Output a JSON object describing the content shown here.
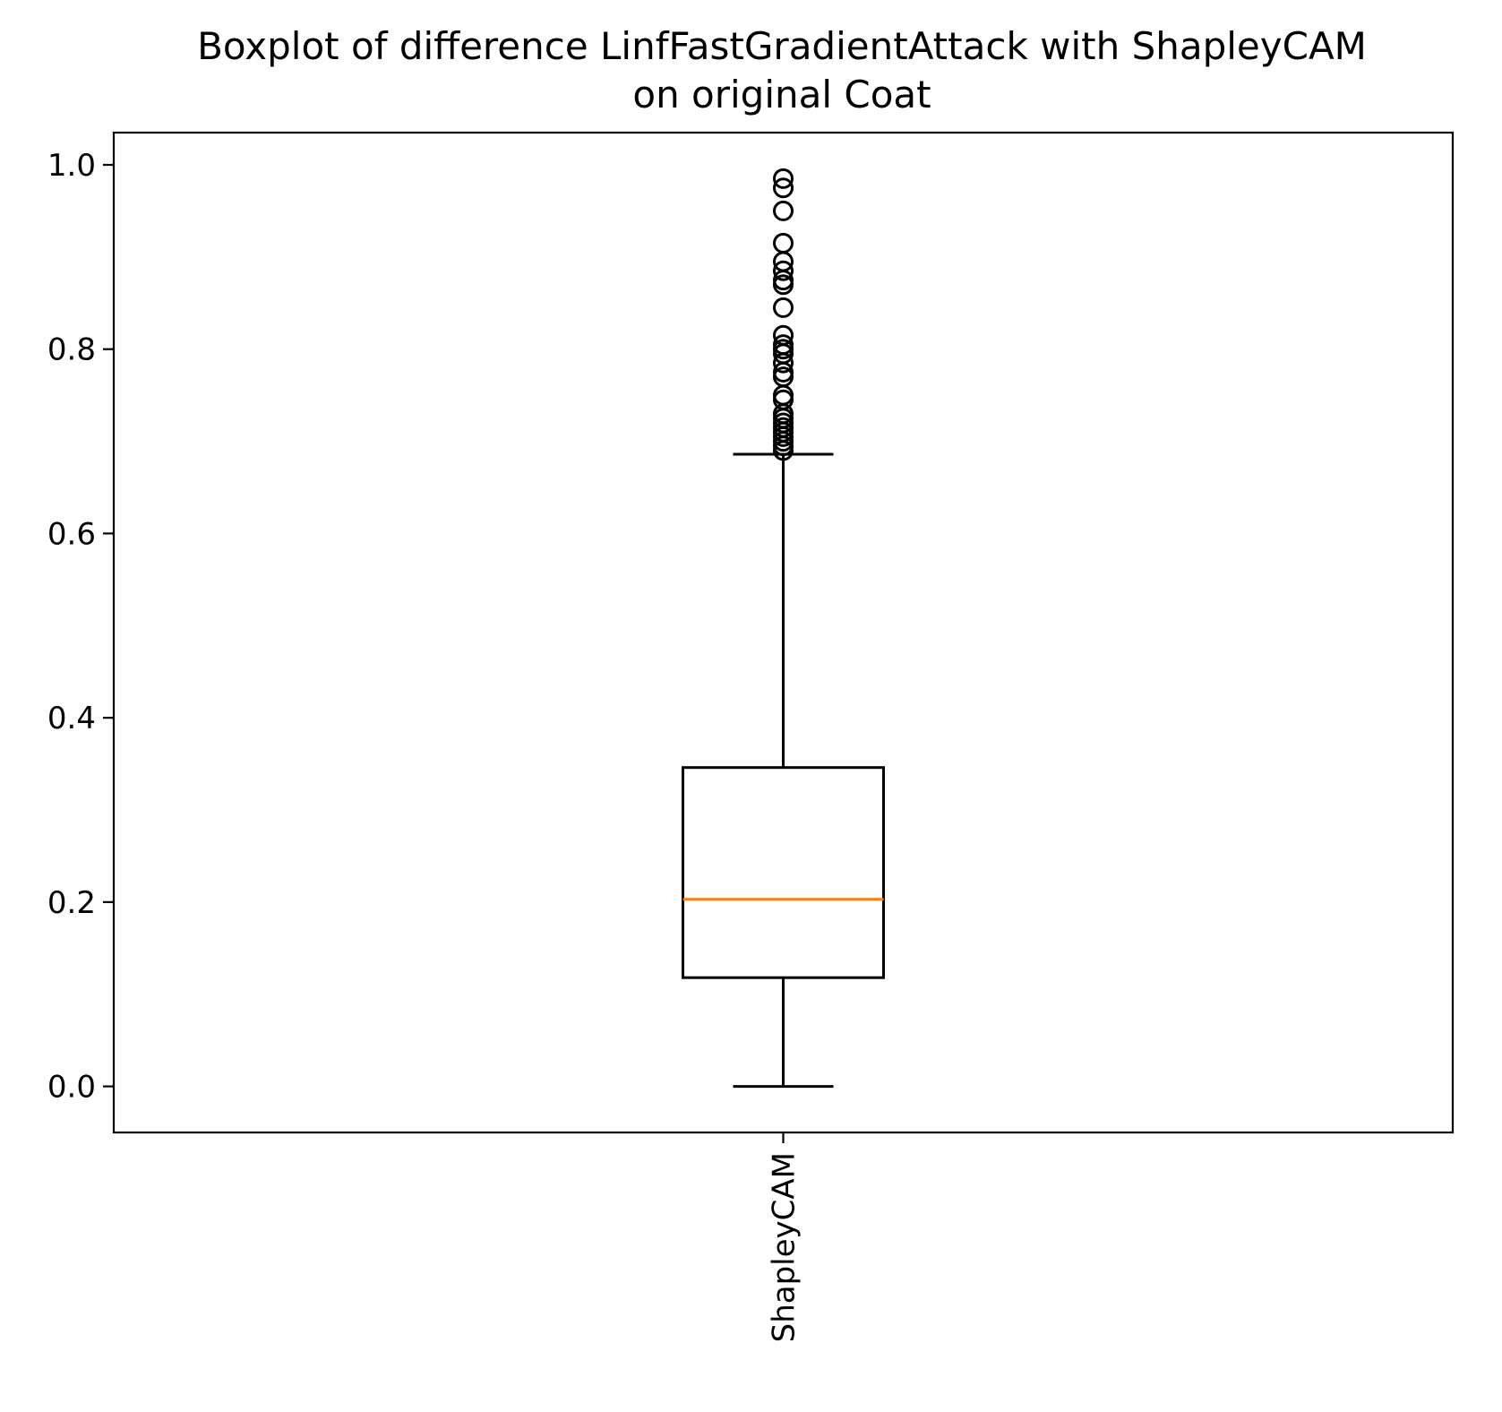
{
  "chart_data": {
    "type": "boxplot",
    "title": "Boxplot of difference LinfFastGradientAttack with ShapleyCAM\non original Coat",
    "title_lines": [
      "Boxplot of difference LinfFastGradientAttack with ShapleyCAM",
      "on original Coat"
    ],
    "xlabel": "",
    "ylabel": "",
    "ylim": [
      -0.05,
      1.035
    ],
    "yticks": [
      0.0,
      0.2,
      0.4,
      0.6,
      0.8,
      1.0
    ],
    "ytick_labels": [
      "0.0",
      "0.2",
      "0.4",
      "0.6",
      "0.8",
      "1.0"
    ],
    "categories": [
      "ShapleyCAM"
    ],
    "xtick_rotation": "vertical",
    "grid": false,
    "legend": "none",
    "boxes": [
      {
        "name": "ShapleyCAM",
        "whisker_low": 0.0,
        "q1": 0.118,
        "median": 0.203,
        "q3": 0.346,
        "whisker_high": 0.686,
        "outliers": [
          0.69,
          0.695,
          0.7,
          0.705,
          0.71,
          0.715,
          0.72,
          0.725,
          0.73,
          0.745,
          0.75,
          0.77,
          0.775,
          0.785,
          0.795,
          0.8,
          0.805,
          0.815,
          0.845,
          0.87,
          0.875,
          0.885,
          0.895,
          0.915,
          0.95,
          0.975,
          0.985
        ]
      }
    ],
    "colors": {
      "box": "#000000",
      "median": "#ff7f0e",
      "outlier": "#000000",
      "background": "#ffffff"
    }
  }
}
